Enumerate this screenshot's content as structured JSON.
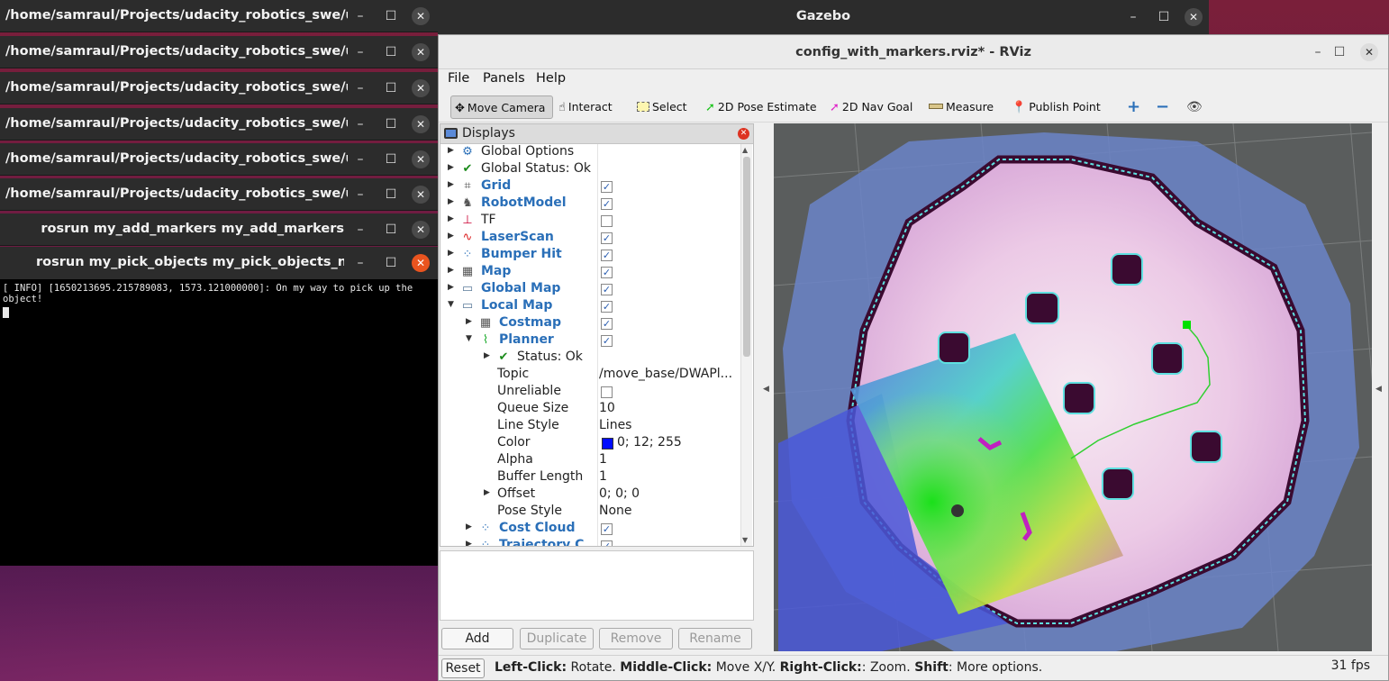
{
  "terminals": [
    {
      "title": "/home/samraul/Projects/udacity_robotics_swe/uda..."
    },
    {
      "title": "/home/samraul/Projects/udacity_robotics_swe/uda..."
    },
    {
      "title": "/home/samraul/Projects/udacity_robotics_swe/uda..."
    },
    {
      "title": "/home/samraul/Projects/udacity_robotics_swe/uda..."
    },
    {
      "title": "/home/samraul/Projects/udacity_robotics_swe/uda..."
    },
    {
      "title": "/home/samraul/Projects/udacity_robotics_swe/uda..."
    },
    {
      "title": "rosrun my_add_markers my_add_markers"
    },
    {
      "title": "rosrun my_pick_objects my_pick_objects_node"
    }
  ],
  "terminal_output": "[ INFO] [1650213695.215789083, 1573.121000000]: On my way to pick up the object!",
  "gazebo": {
    "title": "Gazebo"
  },
  "rviz": {
    "title": "config_with_markers.rviz* - RViz",
    "menu": {
      "file": "File",
      "panels": "Panels",
      "help": "Help"
    },
    "toolbar": {
      "move_camera": "Move Camera",
      "interact": "Interact",
      "select": "Select",
      "pose_estimate": "2D Pose Estimate",
      "nav_goal": "2D Nav Goal",
      "measure": "Measure",
      "publish_point": "Publish Point"
    },
    "displays": {
      "title": "Displays",
      "items": {
        "global_options": "Global Options",
        "global_status": "Global Status: Ok",
        "grid": "Grid",
        "robot_model": "RobotModel",
        "tf": "TF",
        "laser_scan": "LaserScan",
        "bumper_hit": "Bumper Hit",
        "map": "Map",
        "global_map": "Global Map",
        "local_map": "Local Map",
        "costmap": "Costmap",
        "planner": "Planner",
        "planner_status": "Status: Ok",
        "topic_label": "Topic",
        "topic_value": "/move_base/DWAPl...",
        "unreliable_label": "Unreliable",
        "queue_label": "Queue Size",
        "queue_value": "10",
        "linestyle_label": "Line Style",
        "linestyle_value": "Lines",
        "color_label": "Color",
        "color_value": "0; 12; 255",
        "color_swatch": "#000cff",
        "alpha_label": "Alpha",
        "alpha_value": "1",
        "buffer_label": "Buffer Length",
        "buffer_value": "1",
        "offset_label": "Offset",
        "offset_value": "0; 0; 0",
        "posestyle_label": "Pose Style",
        "posestyle_value": "None",
        "cost_cloud": "Cost Cloud",
        "trajectory": "Trajectory C..."
      }
    },
    "buttons": {
      "add": "Add",
      "duplicate": "Duplicate",
      "remove": "Remove",
      "rename": "Rename"
    },
    "status": {
      "reset": "Reset",
      "hint_parts": [
        "Left-Click:",
        " Rotate. ",
        "Middle-Click:",
        " Move X/Y. ",
        "Right-Click:",
        ": Zoom. ",
        "Shift",
        ": More options."
      ],
      "fps": "31 fps"
    }
  },
  "colors": {
    "accent_blue": "#2a6fb8",
    "close_orange": "#e9541f"
  }
}
